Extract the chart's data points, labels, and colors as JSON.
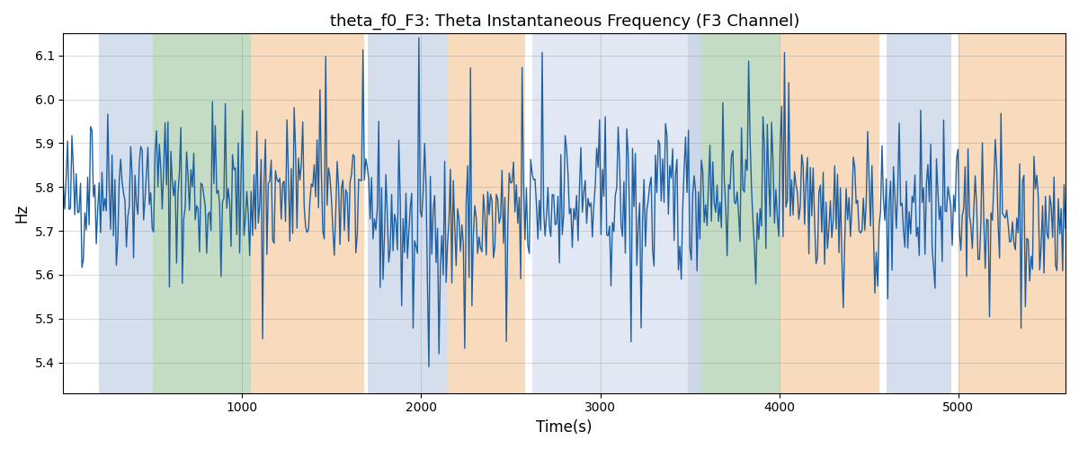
{
  "title": "theta_f0_F3: Theta Instantaneous Frequency (F3 Channel)",
  "xlabel": "Time(s)",
  "ylabel": "Hz",
  "xlim": [
    0,
    5600
  ],
  "ylim": [
    5.33,
    6.15
  ],
  "line_color": "#2060a0",
  "line_width": 1.0,
  "grid": true,
  "seed": 42,
  "n_points": 700,
  "mean": 5.76,
  "std": 0.09,
  "background_regions": [
    {
      "xmin": 200,
      "xmax": 500,
      "color": "#aabedd",
      "alpha": 0.5
    },
    {
      "xmin": 500,
      "xmax": 1050,
      "color": "#88bb88",
      "alpha": 0.5
    },
    {
      "xmin": 1050,
      "xmax": 1680,
      "color": "#f0b87a",
      "alpha": 0.5
    },
    {
      "xmin": 1700,
      "xmax": 2150,
      "color": "#aabedd",
      "alpha": 0.5
    },
    {
      "xmin": 2150,
      "xmax": 2580,
      "color": "#f0b87a",
      "alpha": 0.5
    },
    {
      "xmin": 2620,
      "xmax": 3490,
      "color": "#aabedd",
      "alpha": 0.35
    },
    {
      "xmin": 3490,
      "xmax": 3560,
      "color": "#aabedd",
      "alpha": 0.6
    },
    {
      "xmin": 3560,
      "xmax": 4000,
      "color": "#88bb88",
      "alpha": 0.5
    },
    {
      "xmin": 4000,
      "xmax": 4560,
      "color": "#f0b87a",
      "alpha": 0.5
    },
    {
      "xmin": 4600,
      "xmax": 4960,
      "color": "#aabedd",
      "alpha": 0.5
    },
    {
      "xmin": 5000,
      "xmax": 5600,
      "color": "#f0b87a",
      "alpha": 0.5
    }
  ]
}
